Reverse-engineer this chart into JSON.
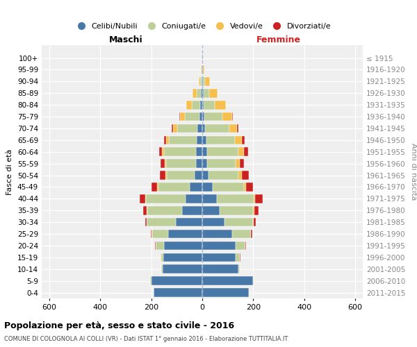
{
  "age_groups": [
    "0-4",
    "5-9",
    "10-14",
    "15-19",
    "20-24",
    "25-29",
    "30-34",
    "35-39",
    "40-44",
    "45-49",
    "50-54",
    "55-59",
    "60-64",
    "65-69",
    "70-74",
    "75-79",
    "80-84",
    "85-89",
    "90-94",
    "95-99",
    "100+"
  ],
  "birth_years": [
    "2011-2015",
    "2006-2010",
    "2001-2005",
    "1996-2000",
    "1991-1995",
    "1986-1990",
    "1981-1985",
    "1976-1980",
    "1971-1975",
    "1966-1970",
    "1961-1965",
    "1956-1960",
    "1951-1955",
    "1946-1950",
    "1941-1945",
    "1936-1940",
    "1931-1935",
    "1926-1930",
    "1921-1925",
    "1916-1920",
    "≤ 1915"
  ],
  "colors": {
    "celibi": "#4878a8",
    "coniugati": "#bfcf9a",
    "vedovi": "#f5c050",
    "divorziati": "#cc2222"
  },
  "maschi": {
    "celibi": [
      190,
      200,
      155,
      152,
      150,
      135,
      105,
      80,
      65,
      48,
      30,
      25,
      25,
      22,
      18,
      12,
      8,
      5,
      3,
      2,
      2
    ],
    "coniugati": [
      2,
      5,
      5,
      10,
      32,
      62,
      112,
      135,
      155,
      125,
      110,
      118,
      125,
      108,
      80,
      55,
      32,
      18,
      4,
      1,
      0
    ],
    "vedovi": [
      0,
      0,
      0,
      1,
      1,
      2,
      2,
      2,
      3,
      3,
      5,
      5,
      8,
      12,
      16,
      20,
      22,
      15,
      6,
      2,
      0
    ],
    "divorziati": [
      0,
      0,
      0,
      1,
      2,
      3,
      5,
      16,
      22,
      22,
      22,
      16,
      12,
      8,
      6,
      4,
      2,
      0,
      0,
      0,
      0
    ]
  },
  "femmine": {
    "celibi": [
      182,
      198,
      142,
      132,
      132,
      118,
      88,
      68,
      58,
      42,
      25,
      20,
      20,
      15,
      10,
      8,
      5,
      5,
      3,
      2,
      1
    ],
    "coniugati": [
      3,
      5,
      5,
      15,
      36,
      72,
      112,
      132,
      145,
      122,
      118,
      112,
      122,
      112,
      95,
      70,
      45,
      22,
      8,
      2,
      0
    ],
    "vedovi": [
      0,
      0,
      0,
      1,
      1,
      2,
      3,
      4,
      5,
      8,
      12,
      14,
      22,
      28,
      32,
      38,
      42,
      32,
      18,
      4,
      1
    ],
    "divorziati": [
      0,
      0,
      0,
      1,
      2,
      5,
      8,
      18,
      28,
      28,
      28,
      18,
      15,
      10,
      6,
      5,
      2,
      0,
      0,
      0,
      0
    ]
  },
  "xlim": 630,
  "xticks": [
    -600,
    -400,
    -200,
    0,
    200,
    400,
    600
  ],
  "xticklabels": [
    "600",
    "400",
    "200",
    "0",
    "200",
    "400",
    "600"
  ],
  "title": "Popolazione per età, sesso e stato civile - 2016",
  "subtitle": "COMUNE DI COLOGNOLA AI COLLI (VR) - Dati ISTAT 1° gennaio 2016 - Elaborazione TUTTITALIA.IT",
  "ylabel_left": "Fasce di età",
  "ylabel_right": "Anni di nascita",
  "header_maschi": "Maschi",
  "header_femmine": "Femmine",
  "legend_labels": [
    "Celibi/Nubili",
    "Coniugati/e",
    "Vedovi/e",
    "Divorziati/e"
  ],
  "bg_color": "#efefef"
}
